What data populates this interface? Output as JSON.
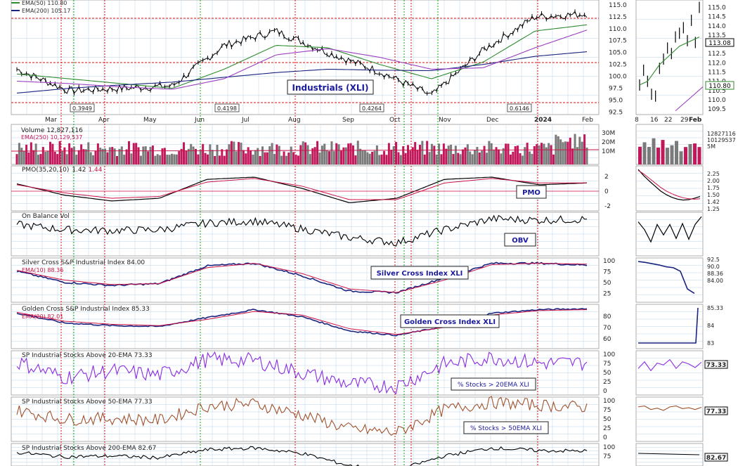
{
  "main": {
    "legend_ema50": "EMA(50) 110.80",
    "legend_ema200": "EMA(200) 105.17",
    "annotation": "Industrials (XLI)",
    "yticks": [
      "115.0",
      "112.5",
      "110.0",
      "107.5",
      "105.0",
      "102.5",
      "100.0",
      "97.5",
      "95.0",
      "92.5"
    ],
    "pmo_markers": [
      "0.3949",
      "0.4198",
      "0.4264",
      "0.6146"
    ],
    "months": [
      "Mar",
      "Apr",
      "May",
      "Jun",
      "Jul",
      "Aug",
      "Sep",
      "Oct",
      "Nov",
      "Dec",
      "2024",
      "Feb"
    ]
  },
  "inset": {
    "yticks": [
      "115.0",
      "114.5",
      "114.0",
      "113.5",
      "113.0",
      "112.5",
      "112.0",
      "111.5",
      "111.0",
      "110.5",
      "110.0",
      "109.5"
    ],
    "price_label": "113.08",
    "ema_label": "110.80",
    "dates": [
      "8",
      "16",
      "22",
      "29",
      "Feb"
    ]
  },
  "volume": {
    "title": "Volume 12,827,116",
    "ema": "EMA(250) 10,129,537",
    "yticks": [
      "30M",
      "20M",
      "10M"
    ],
    "inset_labels": [
      "12827116",
      "10129537",
      "5M"
    ]
  },
  "pmo": {
    "title_prefix": "PMO(35,20,10)",
    "value_1": "1.42",
    "value_2": "1.44",
    "annotation": "PMO",
    "yticks": [
      "2",
      "0",
      "-2"
    ],
    "inset_labels": [
      "2.25",
      "2.00",
      "1.75",
      "1.50",
      "1.42",
      "1.25"
    ]
  },
  "obv": {
    "title": "On Balance Vol",
    "annotation": "OBV"
  },
  "silver": {
    "title": "Silver Cross S&P Industrial Index 84.00",
    "ema": "EMA(10) 88.36",
    "annotation": "Silver Cross Index XLI",
    "yticks": [
      "100",
      "75",
      "50",
      "25"
    ],
    "inset_labels": [
      "92.5",
      "90.0",
      "88.36",
      "84.00"
    ]
  },
  "golden": {
    "title": "Golden Cross S&P Industrial Index 85.33",
    "ema": "EMA(20) 82.01",
    "annotation": "Golden Cross Index XLI",
    "yticks": [
      "80",
      "70",
      "60"
    ],
    "inset_labels": [
      "85.33",
      "84",
      "83"
    ]
  },
  "above20": {
    "title": "SP Industrial Stocks Above 20-EMA 73.33",
    "annotation": "% Stocks > 20EMA XLI",
    "yticks": [
      "100",
      "75",
      "50",
      "25",
      "0"
    ],
    "inset_label": "73.33"
  },
  "above50": {
    "title": "SP Industrial Stocks Above 50-EMA 77.33",
    "annotation": "% Stocks > 50EMA XLI",
    "yticks": [
      "100",
      "75",
      "50",
      "25",
      "0"
    ],
    "inset_label": "77.33"
  },
  "above200": {
    "title": "SP Industrial Stocks Above 200-EMA 82.67",
    "yticks": [
      "100",
      "75"
    ],
    "inset_label": "82.67"
  },
  "colors": {
    "price": "#000000",
    "ema50": "#2e8b2e",
    "ema200": "#1a237e",
    "sma": "#9c3fc0",
    "signal": "#cc1144",
    "grid": "#b8d4ec",
    "red_line": "#dd1111",
    "green_line": "#11aa11",
    "brown": "#a0522d",
    "purple": "#8a2be2",
    "volume_up": "#7a7a7a",
    "volume_down": "#c2185b"
  },
  "chart_data": {
    "type": "line",
    "title": "Industrials (XLI)",
    "x": [
      "Mar",
      "Apr",
      "May",
      "Jun",
      "Jul",
      "Aug",
      "Sep",
      "Oct",
      "Nov",
      "Dec",
      "2024",
      "Feb"
    ],
    "series": [
      {
        "name": "XLI",
        "values": [
          101.5,
          97.0,
          97.5,
          98.0,
          106.5,
          109.5,
          105.0,
          101.0,
          96.0,
          105.5,
          112.5,
          113.1
        ]
      },
      {
        "name": "EMA(50)",
        "values": [
          100.5,
          99.5,
          98.5,
          97.5,
          101.5,
          106.5,
          106.0,
          102.5,
          99.5,
          103.0,
          109.5,
          110.8
        ]
      },
      {
        "name": "EMA(200)",
        "values": [
          96.5,
          97.5,
          98.2,
          98.8,
          99.8,
          100.8,
          101.5,
          101.3,
          101.2,
          102.5,
          104.2,
          105.17
        ]
      }
    ],
    "ylim": [
      92.5,
      115.0
    ],
    "grid": true,
    "legend": "top-left"
  }
}
